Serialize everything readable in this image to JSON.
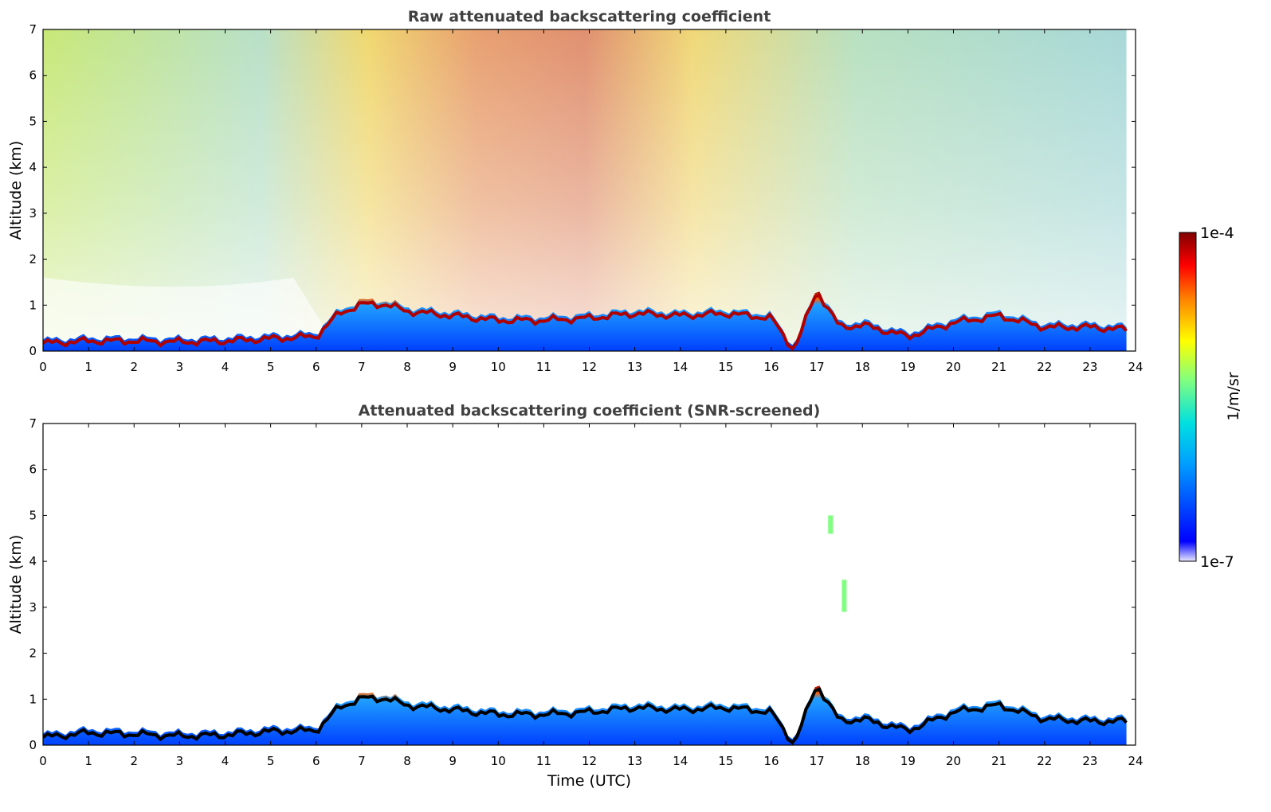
{
  "chart_data": [
    {
      "type": "heatmap",
      "title": "Raw attenuated backscattering coefficient",
      "xlabel": "",
      "ylabel": "Altitude (km)",
      "xlim": [
        0,
        24
      ],
      "ylim": [
        0,
        7
      ],
      "xticks": [
        "0",
        "1",
        "2",
        "3",
        "4",
        "5",
        "6",
        "7",
        "8",
        "9",
        "10",
        "11",
        "12",
        "13",
        "14",
        "15",
        "16",
        "17",
        "18",
        "19",
        "20",
        "21",
        "22",
        "23",
        "24"
      ],
      "yticks": [
        "0",
        "1",
        "2",
        "3",
        "4",
        "5",
        "6",
        "7"
      ],
      "data_end_hour": 23.8,
      "aerosol_layer_top_km": [
        [
          0.0,
          0.25
        ],
        [
          1.0,
          0.3
        ],
        [
          2.0,
          0.3
        ],
        [
          3.0,
          0.28
        ],
        [
          4.0,
          0.3
        ],
        [
          5.0,
          0.35
        ],
        [
          6.0,
          0.4
        ],
        [
          6.5,
          0.9
        ],
        [
          7.0,
          1.1
        ],
        [
          7.5,
          1.1
        ],
        [
          8.0,
          0.95
        ],
        [
          9.0,
          0.85
        ],
        [
          10.0,
          0.75
        ],
        [
          11.0,
          0.75
        ],
        [
          12.0,
          0.8
        ],
        [
          13.0,
          0.9
        ],
        [
          14.0,
          0.85
        ],
        [
          15.0,
          0.9
        ],
        [
          16.0,
          0.8
        ],
        [
          16.5,
          0.1
        ],
        [
          17.0,
          1.4
        ],
        [
          17.5,
          0.6
        ],
        [
          18.0,
          0.65
        ],
        [
          19.0,
          0.4
        ],
        [
          20.0,
          0.7
        ],
        [
          21.0,
          0.85
        ],
        [
          22.0,
          0.6
        ],
        [
          23.0,
          0.6
        ],
        [
          23.8,
          0.55
        ]
      ],
      "noise_profile": "high background noise above 1 km, strongest (red) around 7-12 UTC"
    },
    {
      "type": "heatmap",
      "title": "Attenuated backscattering coefficient (SNR-screened)",
      "xlabel": "Time (UTC)",
      "ylabel": "Altitude (km)",
      "xlim": [
        0,
        24
      ],
      "ylim": [
        0,
        7
      ],
      "xticks": [
        "0",
        "1",
        "2",
        "3",
        "4",
        "5",
        "6",
        "7",
        "8",
        "9",
        "10",
        "11",
        "12",
        "13",
        "14",
        "15",
        "16",
        "17",
        "18",
        "19",
        "20",
        "21",
        "22",
        "23",
        "24"
      ],
      "yticks": [
        "0",
        "1",
        "2",
        "3",
        "4",
        "5",
        "6",
        "7"
      ],
      "data_end_hour": 23.8,
      "aerosol_layer_top_km": [
        [
          0.0,
          0.25
        ],
        [
          1.0,
          0.35
        ],
        [
          2.0,
          0.32
        ],
        [
          3.0,
          0.28
        ],
        [
          4.0,
          0.3
        ],
        [
          5.0,
          0.38
        ],
        [
          6.0,
          0.4
        ],
        [
          6.5,
          0.9
        ],
        [
          7.0,
          1.1
        ],
        [
          7.5,
          1.1
        ],
        [
          8.0,
          0.95
        ],
        [
          9.0,
          0.85
        ],
        [
          10.0,
          0.75
        ],
        [
          11.0,
          0.75
        ],
        [
          12.0,
          0.8
        ],
        [
          13.0,
          0.9
        ],
        [
          14.0,
          0.85
        ],
        [
          15.0,
          0.9
        ],
        [
          16.0,
          0.8
        ],
        [
          16.5,
          0.1
        ],
        [
          17.0,
          1.4
        ],
        [
          17.5,
          0.6
        ],
        [
          18.0,
          0.65
        ],
        [
          19.0,
          0.4
        ],
        [
          20.0,
          0.8
        ],
        [
          21.0,
          0.95
        ],
        [
          22.0,
          0.65
        ],
        [
          23.0,
          0.6
        ],
        [
          23.8,
          0.6
        ]
      ],
      "isolated_features": [
        {
          "x_hour": 17.6,
          "y_km_range": [
            2.9,
            3.6
          ]
        },
        {
          "x_hour": 17.3,
          "y_km_range": [
            4.6,
            5.0
          ]
        }
      ]
    }
  ],
  "colorbar": {
    "label": "1/m/sr",
    "max_label": "1e-4",
    "min_label": "1e-7",
    "colormap": "jet",
    "colors": [
      "#e8e8ff",
      "#0000ff",
      "#00a0ff",
      "#00e0e0",
      "#80ff80",
      "#ffff00",
      "#ff8000",
      "#ff0000",
      "#800000"
    ]
  }
}
